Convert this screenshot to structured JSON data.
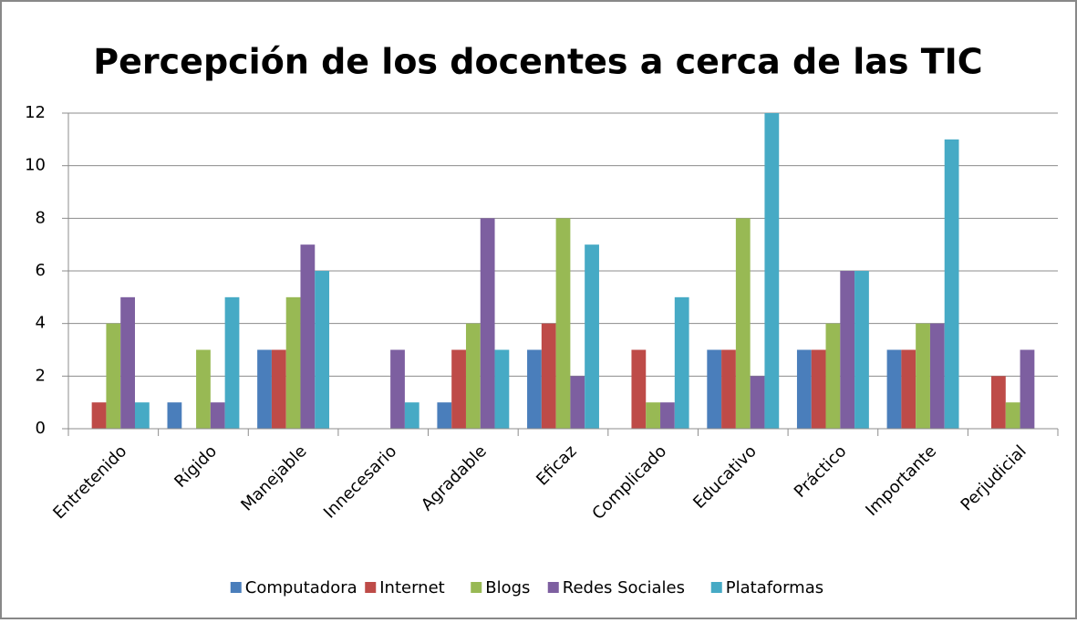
{
  "chart_data": {
    "type": "bar",
    "title": "Percepción de los docentes a cerca de las TIC",
    "categories": [
      "Entretenido",
      "Rígido",
      "Manejable",
      "Innecesario",
      "Agradable",
      "Eficaz",
      "Complicado",
      "Educativo",
      "Práctico",
      "Importante",
      "Perjudicial"
    ],
    "series": [
      {
        "name": "Computadora",
        "color": "#4a7ebb",
        "values": [
          0,
          1,
          3,
          0,
          1,
          3,
          0,
          3,
          3,
          3,
          0
        ]
      },
      {
        "name": "Internet",
        "color": "#be4b48",
        "values": [
          1,
          0,
          3,
          0,
          3,
          4,
          3,
          3,
          3,
          3,
          2
        ]
      },
      {
        "name": "Blogs",
        "color": "#98b954",
        "values": [
          4,
          3,
          5,
          0,
          4,
          8,
          1,
          8,
          4,
          4,
          1
        ]
      },
      {
        "name": "Redes Sociales",
        "color": "#7d5fa0",
        "values": [
          5,
          1,
          7,
          3,
          8,
          2,
          1,
          2,
          6,
          4,
          3
        ]
      },
      {
        "name": "Plataformas",
        "color": "#46aac5",
        "values": [
          1,
          5,
          6,
          1,
          3,
          7,
          5,
          12,
          6,
          11,
          0
        ]
      }
    ],
    "ylim": [
      0,
      12
    ],
    "yticks": [
      0,
      2,
      4,
      6,
      8,
      10,
      12
    ],
    "grid": true,
    "legend": "bottom"
  }
}
